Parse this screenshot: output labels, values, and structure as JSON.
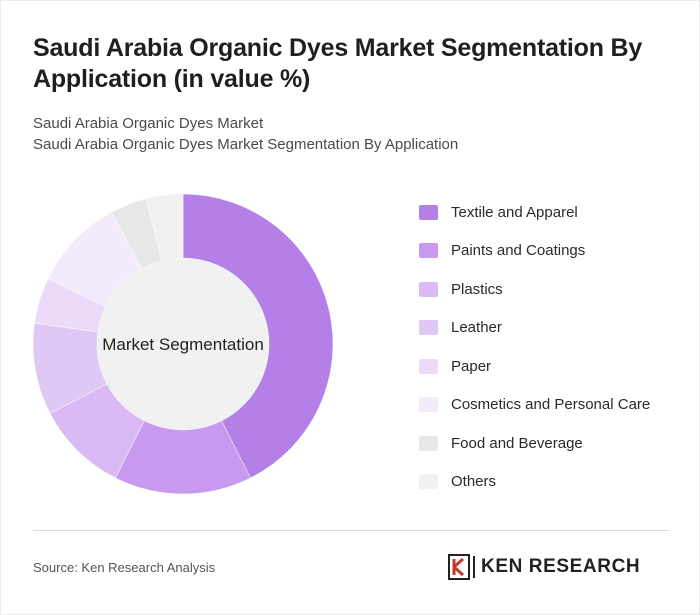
{
  "header": {
    "title": "Saudi Arabia Organic Dyes Market Segmentation By Application (in value %)",
    "subtitle_1": "Saudi Arabia Organic Dyes Market",
    "subtitle_2": "Saudi Arabia Organic Dyes Market Segmentation By Application"
  },
  "chart_data": {
    "type": "pie",
    "style": "donut",
    "center_label": "Market Segmentation",
    "legend_position": "right",
    "categories": [
      "Textile and Apparel",
      "Paints and Coatings",
      "Plastics",
      "Leather",
      "Paper",
      "Cosmetics and Personal Care",
      "Food and Beverage",
      "Others"
    ],
    "values": [
      43,
      15,
      10,
      10,
      5,
      10,
      4,
      4
    ],
    "colors": [
      "#b57fe8",
      "#c79af0",
      "#dabaf5",
      "#e0c8f5",
      "#ebdaf9",
      "#f3ebfb",
      "#e8e8e8",
      "#f1f1f1"
    ]
  },
  "footer": {
    "source": "Source: Ken Research Analysis",
    "brand": "KEN RESEARCH"
  }
}
